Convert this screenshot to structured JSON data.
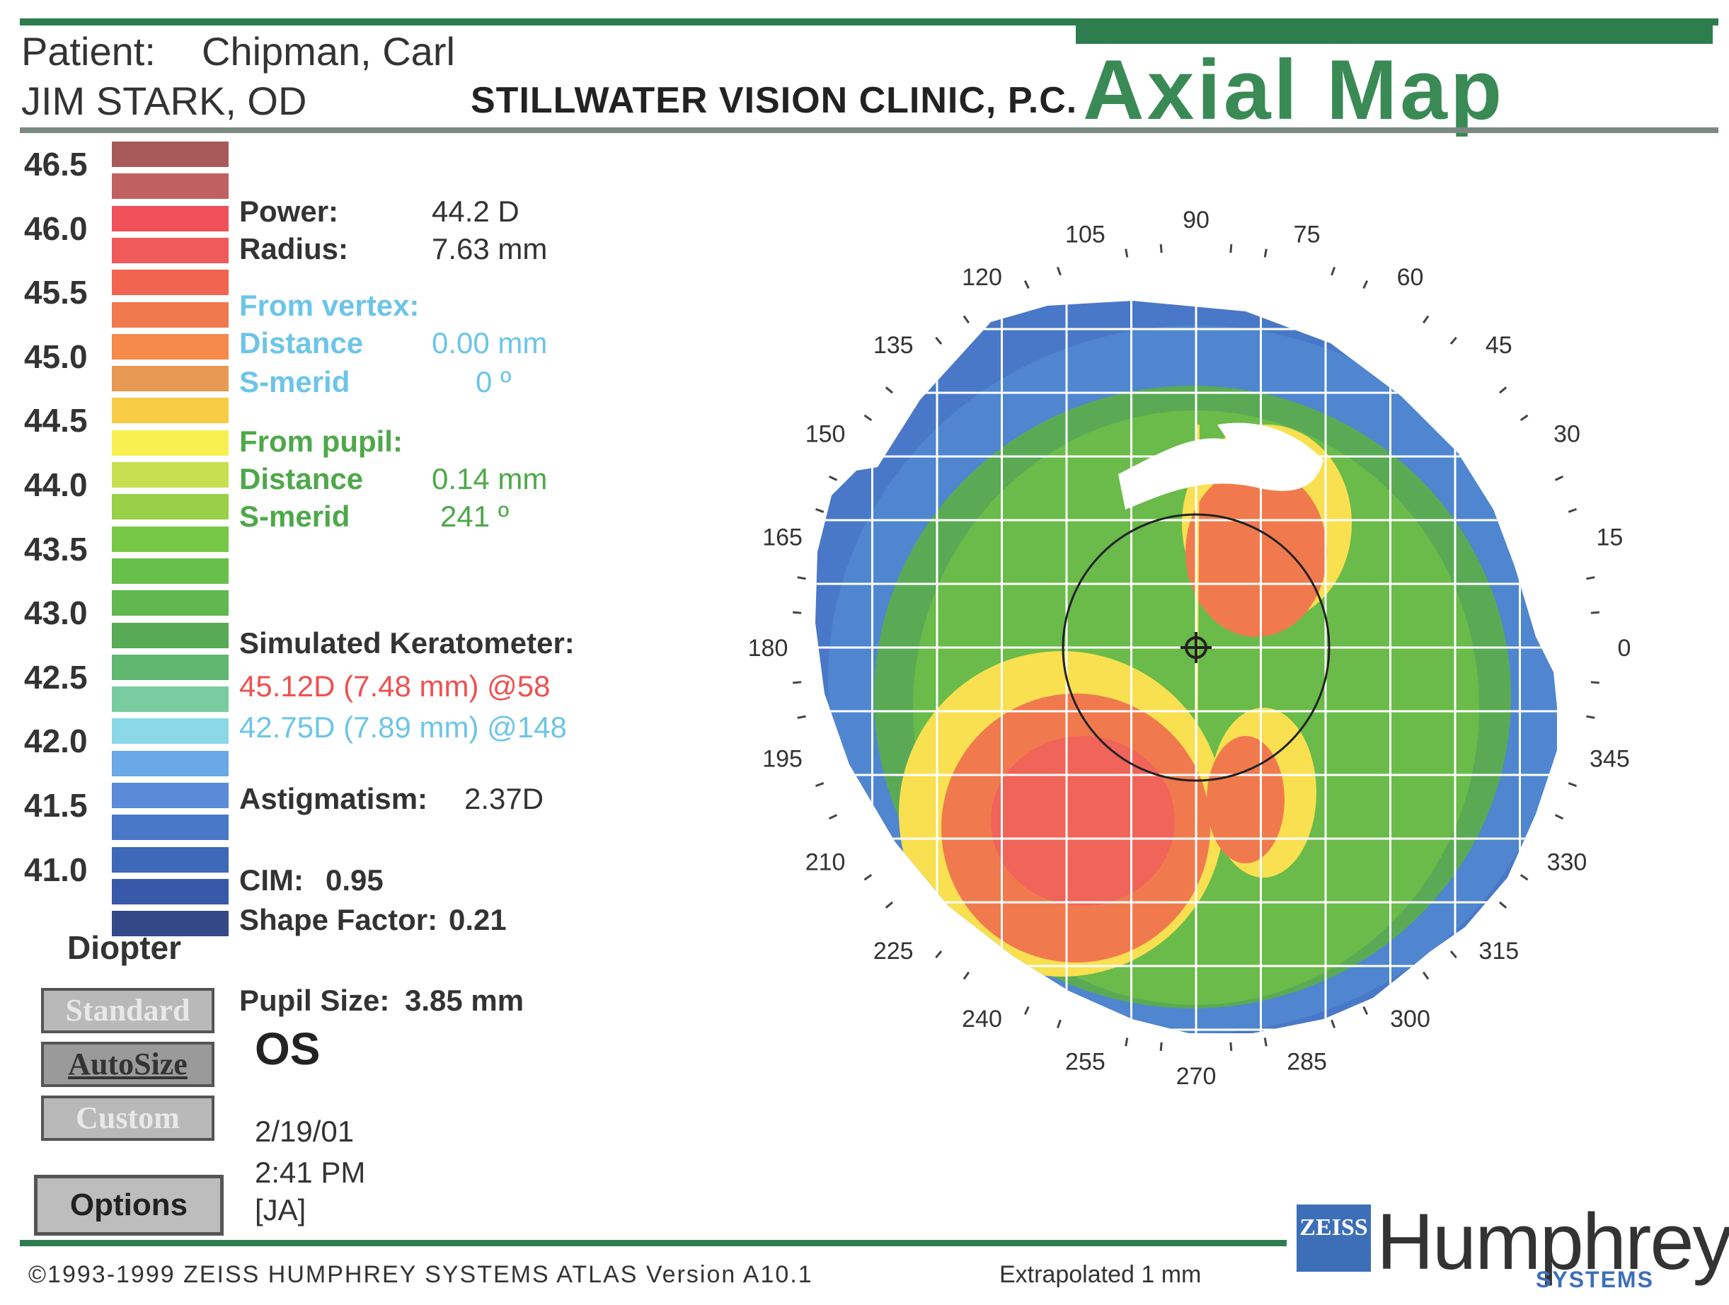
{
  "header": {
    "patient_label": "Patient:",
    "patient_name": "Chipman, Carl",
    "doctor": "JIM STARK, OD",
    "clinic": "STILLWATER VISION CLINIC, P.C.",
    "map_title": "Axial Map"
  },
  "colors": {
    "brand_green": "#2e7d4f",
    "title_green": "#3a8a55",
    "cyan_text": "#6cc5e8",
    "green_text": "#4ea84a",
    "red_text": "#f05050",
    "zeiss_blue": "#3d6fb8"
  },
  "scale": {
    "labels": [
      "46.5",
      "46.0",
      "45.5",
      "45.0",
      "44.5",
      "44.0",
      "43.5",
      "43.0",
      "42.5",
      "42.0",
      "41.5",
      "41.0"
    ],
    "swatch_colors": [
      "#a85a5a",
      "#c06060",
      "#f0505a",
      "#f05a5a",
      "#f06450",
      "#f07a4e",
      "#f58a4a",
      "#e89a55",
      "#f8cc45",
      "#f8f050",
      "#c8e050",
      "#98d048",
      "#78c848",
      "#68c04a",
      "#60b84e",
      "#58aa54",
      "#60b870",
      "#78cca0",
      "#8ad8e8",
      "#6aa8e8",
      "#5a8ad8",
      "#4a78c8",
      "#3e68b8",
      "#3858a8",
      "#344888"
    ],
    "unit_label": "Diopter"
  },
  "buttons": {
    "standard": "Standard",
    "autosize": "AutoSize",
    "custom": "Custom",
    "options": "Options"
  },
  "info": {
    "power_label": "Power:",
    "power_value": "44.2 D",
    "radius_label": "Radius:",
    "radius_value": "7.63 mm",
    "from_vertex_label": "From vertex:",
    "vertex_distance_label": "Distance",
    "vertex_distance_value": "0.00 mm",
    "vertex_smerid_label": "S-merid",
    "vertex_smerid_value": "0 º",
    "from_pupil_label": "From pupil:",
    "pupil_distance_label": "Distance",
    "pupil_distance_value": "0.14 mm",
    "pupil_smerid_label": "S-merid",
    "pupil_smerid_value": "241 º",
    "simk_label": "Simulated Keratometer:",
    "simk_steep": "45.12D (7.48 mm) @58",
    "simk_flat": "42.75D (7.89 mm) @148",
    "astig_label": "Astigmatism:",
    "astig_value": "2.37D",
    "cim_label": "CIM:",
    "cim_value": "0.95",
    "shape_label": "Shape Factor:",
    "shape_value": "0.21",
    "pupil_size_label": "Pupil Size:",
    "pupil_size_value": "3.85 mm",
    "eye": "OS",
    "date": "2/19/01",
    "time": "2:41 PM",
    "operator": "[JA]"
  },
  "map": {
    "angle_labels": [
      "0",
      "15",
      "30",
      "45",
      "60",
      "75",
      "90",
      "105",
      "120",
      "135",
      "150",
      "165",
      "180",
      "195",
      "210",
      "225",
      "240",
      "255",
      "270",
      "285",
      "300",
      "315",
      "330",
      "345"
    ]
  },
  "footer": {
    "copyright": "©1993-1999 ZEISS HUMPHREY SYSTEMS ATLAS  Version A10.1",
    "extrapolated": "Extrapolated 1 mm",
    "logo_zeiss": "ZEISS",
    "logo_humphrey": "Humphrey",
    "logo_systems": "SYSTEMS"
  }
}
